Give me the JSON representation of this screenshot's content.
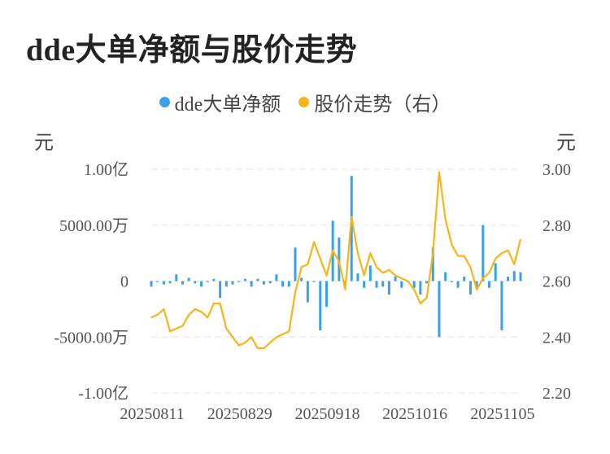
{
  "title": "dde大单净额与股价走势",
  "units": {
    "left": "元",
    "right": "元"
  },
  "colors": {
    "bar": "#3ba1e6",
    "line": "#f5b51b",
    "grid": "#e6e6e6"
  },
  "chart_data": {
    "type": "bar+line",
    "legend_position": "top",
    "grid": true,
    "series": [
      {
        "name": "dde大单净额",
        "type": "bar",
        "axis": "left",
        "values": [
          -500,
          0,
          -300,
          -200,
          600,
          -300,
          300,
          -200,
          -500,
          0,
          200,
          -1500,
          -500,
          -300,
          0,
          200,
          -500,
          200,
          -300,
          -200,
          600,
          -500,
          -500,
          3000,
          300,
          -1900,
          0,
          -4400,
          -2300,
          5400,
          3900,
          -200,
          9400,
          700,
          -600,
          1400,
          -600,
          -500,
          -1200,
          400,
          -600,
          -100,
          -600,
          -1200,
          -200,
          3000,
          -5000,
          800,
          -100,
          -600,
          400,
          -1200,
          -700,
          5000,
          -600,
          1600,
          -4400,
          400,
          900,
          800
        ]
      },
      {
        "name": "股价走势（右）",
        "type": "line",
        "axis": "right",
        "values": [
          2.47,
          2.48,
          2.5,
          2.42,
          2.43,
          2.44,
          2.48,
          2.5,
          2.49,
          2.47,
          2.52,
          2.52,
          2.43,
          2.4,
          2.37,
          2.38,
          2.4,
          2.36,
          2.36,
          2.38,
          2.4,
          2.41,
          2.42,
          2.56,
          2.65,
          2.66,
          2.74,
          2.68,
          2.62,
          2.71,
          2.67,
          2.57,
          2.83,
          2.7,
          2.62,
          2.7,
          2.65,
          2.63,
          2.64,
          2.62,
          2.61,
          2.6,
          2.57,
          2.52,
          2.54,
          2.7,
          2.99,
          2.82,
          2.73,
          2.69,
          2.69,
          2.65,
          2.57,
          2.61,
          2.63,
          2.68,
          2.7,
          2.71,
          2.66,
          2.75
        ]
      }
    ],
    "x_labels": [
      "20250811",
      "20250829",
      "20250918",
      "20251016",
      "20251105"
    ],
    "x_label_index": [
      0,
      14,
      28,
      42,
      56
    ],
    "y_left": {
      "range": [
        -10000,
        10000
      ],
      "ticks": [
        10000,
        5000,
        0,
        -5000,
        -10000
      ],
      "tick_labels": [
        "1.00亿",
        "5000.00万",
        "0",
        "-5000.00万",
        "-1.00亿"
      ]
    },
    "y_right": {
      "range": [
        2.2,
        3.0
      ],
      "ticks": [
        3.0,
        2.8,
        2.6,
        2.4,
        2.2
      ],
      "tick_labels": [
        "3.00",
        "2.80",
        "2.60",
        "2.40",
        "2.20"
      ]
    }
  }
}
